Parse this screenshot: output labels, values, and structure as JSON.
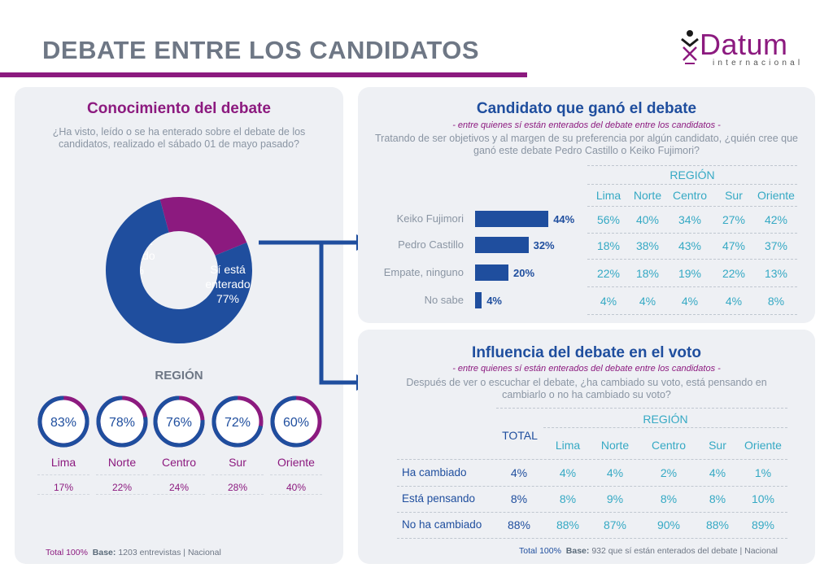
{
  "title": "DEBATE ENTRE LOS CANDIDATOS",
  "logo": {
    "word": "Datum",
    "sub": "internacional"
  },
  "colors": {
    "primary": "#1f4e9e",
    "accent": "#8c1a7f",
    "region": "#35a9c4",
    "panel": "#eef0f4"
  },
  "left": {
    "title": "Conocimiento del debate",
    "question": "¿Ha visto, leído o se ha enterado sobre el debate de los candidatos, realizado el sábado 01 de mayo pasado?",
    "region_title": "REGIÓN",
    "footer_total": "Total 100%",
    "footer_base_label": "Base:",
    "footer_base": "1203 entrevistas | Nacional"
  },
  "top_right": {
    "title": "Candidato que ganó el debate",
    "subtitle": "- entre quienes sí están enterados del debate entre los candidatos -",
    "question": "Tratando de ser objetivos y al margen de su preferencia por algún candidato, ¿quién cree que ganó este debate Pedro Castillo o Keiko Fujimori?",
    "region_title": "REGIÓN"
  },
  "bottom_right": {
    "title": "Influencia del debate en el voto",
    "subtitle": "- entre quienes sí están enterados del debate entre los candidatos -",
    "question": "Después de ver o escuchar el debate, ¿ha cambiado su voto, está pensando en cambiarlo o no ha cambiado su voto?",
    "region_title": "REGIÓN",
    "total_header": "TOTAL",
    "footer_total": "Total 100%",
    "footer_base_label": "Base:",
    "footer_base": "932 que sí están enterados del debate | Nacional"
  },
  "chart_data": [
    {
      "type": "pie",
      "variant": "donut",
      "slices": [
        {
          "label_line1": "Sí está",
          "label_line2": "enterado",
          "value": 77,
          "value_label": "77%",
          "color": "#1f4e9e"
        },
        {
          "label_line1": "No está",
          "label_line2": "enterado",
          "value": 23,
          "value_label": "23%",
          "color": "#8c1a7f"
        }
      ],
      "regions": [
        {
          "name": "Lima",
          "aware": 83,
          "aware_label": "83%",
          "not_aware_label": "17%"
        },
        {
          "name": "Norte",
          "aware": 78,
          "aware_label": "78%",
          "not_aware_label": "22%"
        },
        {
          "name": "Centro",
          "aware": 76,
          "aware_label": "76%",
          "not_aware_label": "24%"
        },
        {
          "name": "Sur",
          "aware": 72,
          "aware_label": "72%",
          "not_aware_label": "28%"
        },
        {
          "name": "Oriente",
          "aware": 60,
          "aware_label": "60%",
          "not_aware_label": "40%"
        }
      ]
    },
    {
      "type": "bar",
      "orientation": "horizontal",
      "categories": [
        "Keiko Fujimori",
        "Pedro Castillo",
        "Empate, ninguno",
        "No sabe"
      ],
      "values": [
        44,
        32,
        20,
        4
      ],
      "value_labels": [
        "44%",
        "32%",
        "20%",
        "4%"
      ],
      "region_columns": [
        "Lima",
        "Norte",
        "Centro",
        "Sur",
        "Oriente"
      ],
      "region_values": [
        [
          "56%",
          "40%",
          "34%",
          "27%",
          "42%"
        ],
        [
          "18%",
          "38%",
          "43%",
          "47%",
          "37%"
        ],
        [
          "22%",
          "18%",
          "19%",
          "22%",
          "13%"
        ],
        [
          "4%",
          "4%",
          "4%",
          "4%",
          "8%"
        ]
      ]
    },
    {
      "type": "table",
      "rows": [
        "Ha cambiado",
        "Está pensando",
        "No ha cambiado"
      ],
      "total": [
        "4%",
        "8%",
        "88%"
      ],
      "region_columns": [
        "Lima",
        "Norte",
        "Centro",
        "Sur",
        "Oriente"
      ],
      "region_values": [
        [
          "4%",
          "4%",
          "2%",
          "4%",
          "1%"
        ],
        [
          "8%",
          "9%",
          "8%",
          "8%",
          "10%"
        ],
        [
          "88%",
          "87%",
          "90%",
          "88%",
          "89%"
        ]
      ]
    }
  ]
}
